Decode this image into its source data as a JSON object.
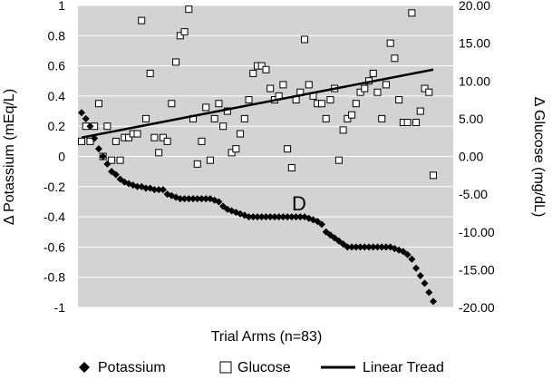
{
  "chart_data": {
    "type": "scatter",
    "xlabel": "Trial Arms (n=83)",
    "ylabel_left": "Δ Potassium (mEq/L)",
    "ylabel_right": "Δ Glucose (mg/dL)",
    "x_count": 83,
    "ylim_left": [
      -1,
      1
    ],
    "ylim_right": [
      -20,
      20
    ],
    "left_ticks": [
      "-1",
      "-0.8",
      "-0.6",
      "-0.4",
      "-0.2",
      "0",
      "0.2",
      "0.4",
      "0.6",
      "0.8",
      "1"
    ],
    "right_ticks": [
      "-20.00",
      "-15.00",
      "-10.00",
      "-5.00",
      "0.00",
      "5.00",
      "10.00",
      "15.00",
      "20.00"
    ],
    "grid": true,
    "plot_background": "#d3d3d3",
    "annotation": "D",
    "legend": {
      "placement": "bottom",
      "items": [
        {
          "label": "Potassium",
          "marker": "filled-diamond"
        },
        {
          "label": "Glucose",
          "marker": "open-square"
        },
        {
          "label": "Linear Tread",
          "marker": "line"
        }
      ]
    },
    "series": [
      {
        "name": "Potassium",
        "axis": "left",
        "marker": "diamond",
        "color": "#000000",
        "values": [
          0.29,
          0.25,
          0.2,
          0.12,
          0.05,
          0.0,
          -0.05,
          -0.1,
          -0.12,
          -0.15,
          -0.17,
          -0.18,
          -0.19,
          -0.2,
          -0.2,
          -0.21,
          -0.21,
          -0.22,
          -0.22,
          -0.22,
          -0.25,
          -0.26,
          -0.27,
          -0.28,
          -0.28,
          -0.28,
          -0.28,
          -0.28,
          -0.28,
          -0.28,
          -0.28,
          -0.29,
          -0.3,
          -0.33,
          -0.35,
          -0.36,
          -0.37,
          -0.38,
          -0.39,
          -0.4,
          -0.4,
          -0.4,
          -0.4,
          -0.4,
          -0.4,
          -0.4,
          -0.4,
          -0.4,
          -0.4,
          -0.4,
          -0.4,
          -0.4,
          -0.4,
          -0.41,
          -0.42,
          -0.43,
          -0.45,
          -0.5,
          -0.52,
          -0.54,
          -0.56,
          -0.58,
          -0.6,
          -0.6,
          -0.6,
          -0.6,
          -0.6,
          -0.6,
          -0.6,
          -0.6,
          -0.6,
          -0.6,
          -0.6,
          -0.61,
          -0.62,
          -0.63,
          -0.65,
          -0.68,
          -0.74,
          -0.79,
          -0.84,
          -0.9,
          -0.96
        ]
      },
      {
        "name": "Glucose",
        "axis": "right",
        "marker": "square",
        "color": "#000000",
        "values": [
          2.0,
          4.0,
          2.0,
          4.0,
          7.0,
          0.0,
          4.0,
          -0.5,
          2.0,
          -0.5,
          2.5,
          2.5,
          3.0,
          3.0,
          18.0,
          5.0,
          11.0,
          2.5,
          0.5,
          2.5,
          2.0,
          7.0,
          12.5,
          16.0,
          16.5,
          19.5,
          5.0,
          -1.0,
          2.0,
          6.5,
          -0.5,
          5.0,
          7.0,
          4.0,
          6.0,
          0.5,
          1.0,
          3.0,
          5.0,
          7.5,
          11.0,
          12.0,
          12.0,
          11.5,
          9.0,
          7.5,
          8.0,
          9.5,
          1.0,
          -1.5,
          7.5,
          8.5,
          15.5,
          9.5,
          8.0,
          7.0,
          7.0,
          5.0,
          7.5,
          9.0,
          -0.5,
          3.5,
          5.0,
          5.5,
          7.0,
          8.5,
          9.0,
          10.0,
          11.0,
          8.5,
          5.0,
          9.5,
          15.0,
          13.0,
          7.5,
          4.5,
          4.5,
          19.0,
          4.5,
          6.0,
          9.0,
          8.5,
          -2.5
        ]
      },
      {
        "name": "Linear Tread",
        "axis": "right",
        "type": "line",
        "color": "#000000",
        "values": [
          2.5,
          11.5
        ]
      }
    ]
  }
}
